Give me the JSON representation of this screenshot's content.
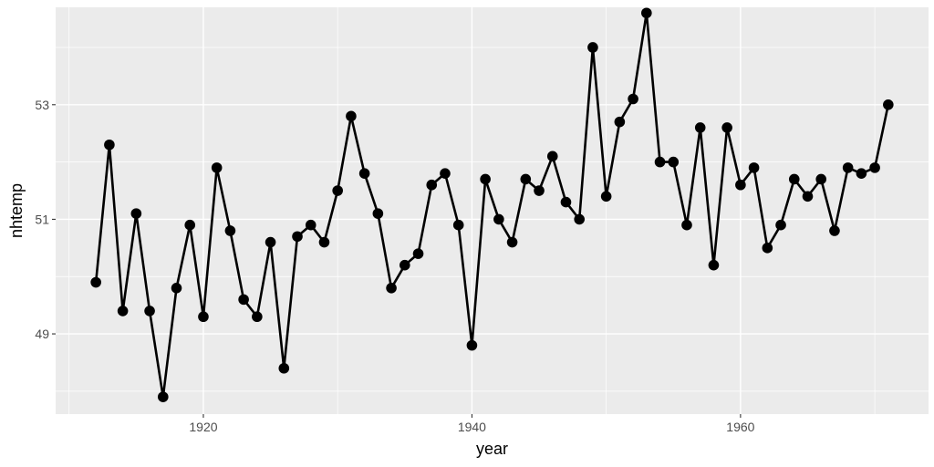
{
  "chart_data": {
    "type": "line",
    "title": "",
    "xlabel": "year",
    "ylabel": "nhtemp",
    "xlim": [
      1909,
      1974
    ],
    "ylim": [
      47.6,
      54.7
    ],
    "x_ticks": [
      1920,
      1940,
      1960
    ],
    "x_minor_ticks": [
      1910,
      1930,
      1950,
      1970
    ],
    "y_ticks": [
      49,
      51,
      53
    ],
    "y_minor_ticks": [
      48,
      50,
      52,
      54
    ],
    "grid": true,
    "legend": "none",
    "colors": {
      "panel": "#ebebeb",
      "grid": "#ffffff",
      "line": "#000000",
      "point": "#000000",
      "tick_text": "#4d4d4d"
    },
    "series": [
      {
        "x": [
          1912,
          1913,
          1914,
          1915,
          1916,
          1917,
          1918,
          1919,
          1920,
          1921,
          1922,
          1923,
          1924,
          1925,
          1926,
          1927,
          1928,
          1929,
          1930,
          1931,
          1932,
          1933,
          1934,
          1935,
          1936,
          1937,
          1938,
          1939,
          1940,
          1941,
          1942,
          1943,
          1944,
          1945,
          1946,
          1947,
          1948,
          1949,
          1950,
          1951,
          1952,
          1953,
          1954,
          1955,
          1956,
          1957,
          1958,
          1959,
          1960,
          1961,
          1962,
          1963,
          1964,
          1965,
          1966,
          1967,
          1968,
          1969,
          1970,
          1971
        ],
        "values": [
          49.9,
          52.3,
          49.4,
          51.1,
          49.4,
          47.9,
          49.8,
          50.9,
          49.3,
          51.9,
          50.8,
          49.6,
          49.3,
          50.6,
          48.4,
          50.7,
          50.9,
          50.6,
          51.5,
          52.8,
          51.8,
          51.1,
          49.8,
          50.2,
          50.4,
          51.6,
          51.8,
          50.9,
          48.8,
          51.7,
          51.0,
          50.6,
          51.7,
          51.5,
          52.1,
          51.3,
          51.0,
          54.0,
          51.4,
          52.7,
          53.1,
          54.6,
          52.0,
          52.0,
          50.9,
          52.6,
          50.2,
          52.6,
          51.6,
          51.9,
          50.5,
          50.9,
          51.7,
          51.4,
          51.7,
          50.8,
          51.9,
          51.8,
          51.9,
          53.0
        ]
      }
    ]
  }
}
